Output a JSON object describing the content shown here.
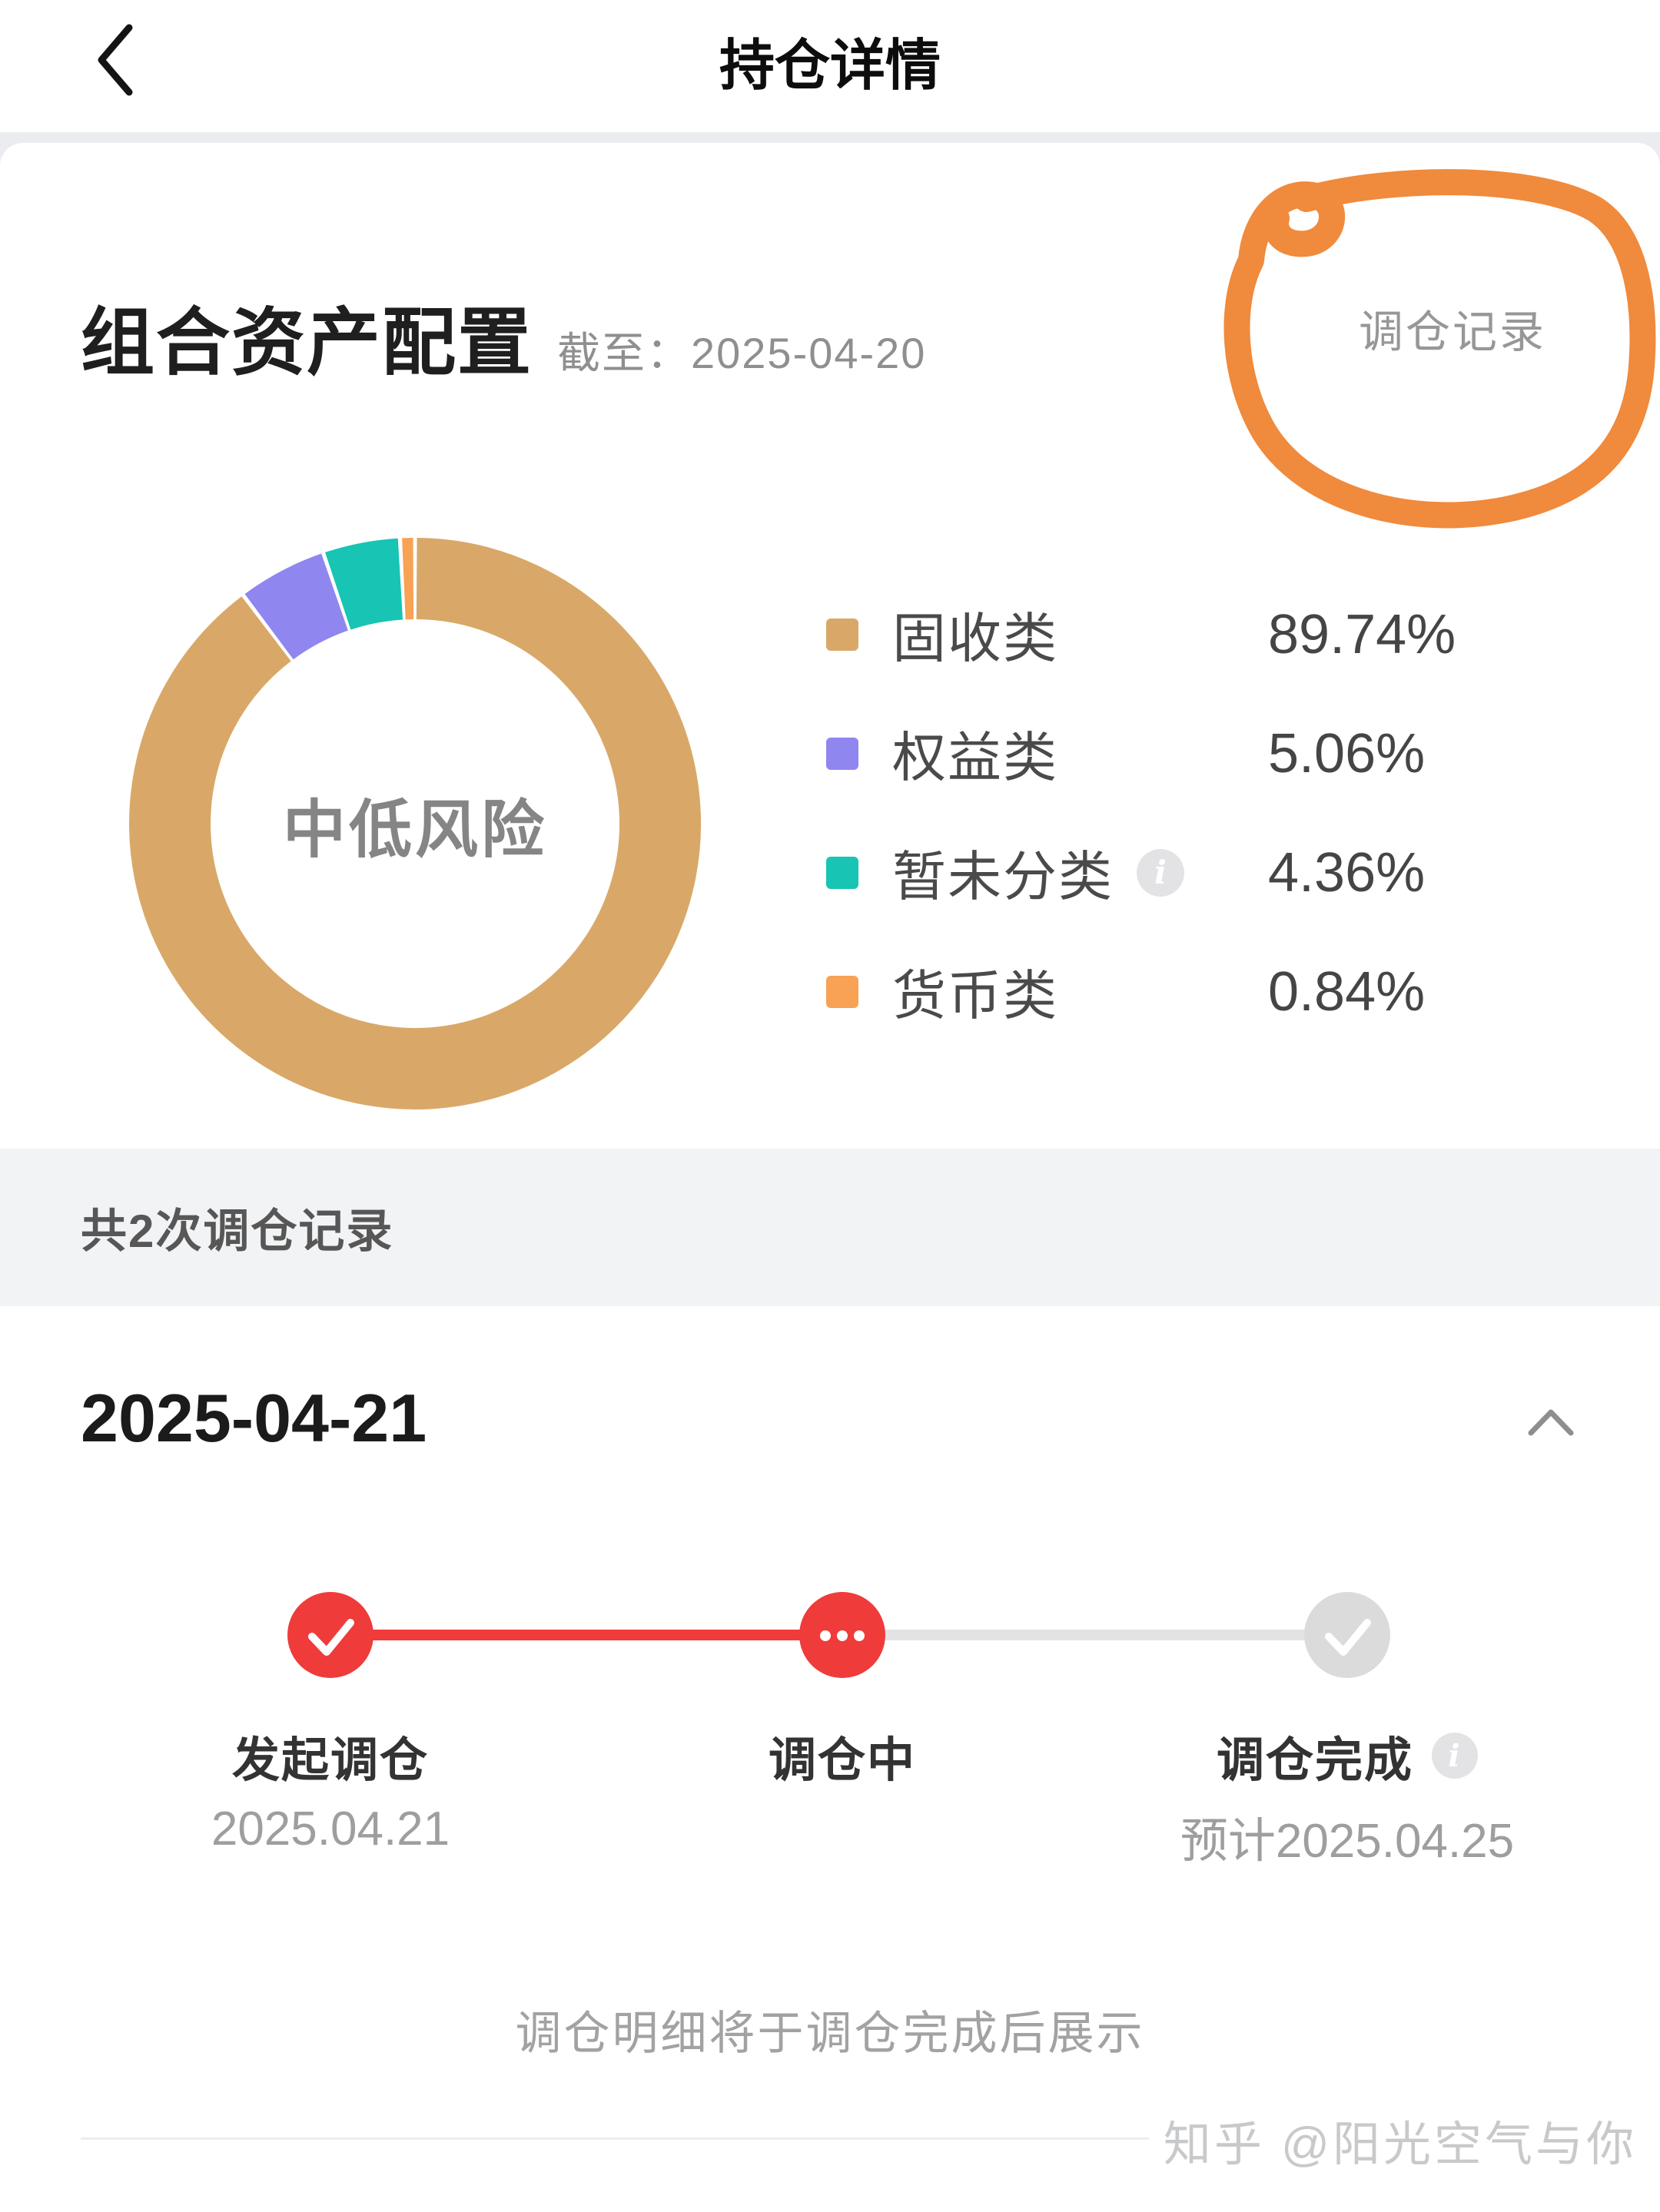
{
  "nav": {
    "title": "持仓详情"
  },
  "allocation": {
    "title": "组合资产配置",
    "as_of_label": "截至：",
    "as_of_date": "2025-04-20",
    "records_link": "调仓记录",
    "risk_label": "中低风险",
    "legend": [
      {
        "label": "固收类",
        "value": "89.74%",
        "color": "#D9A868"
      },
      {
        "label": "权益类",
        "value": "5.06%",
        "color": "#8F86F0"
      },
      {
        "label": "暂未分类",
        "value": "4.36%",
        "color": "#18C4B3"
      },
      {
        "label": "货币类",
        "value": "0.84%",
        "color": "#F7A254"
      }
    ]
  },
  "records": {
    "summary": "共2次调仓记录",
    "date_header": "2025-04-21",
    "note": "调仓明细将于调仓完成后展示"
  },
  "stepper": {
    "steps": [
      {
        "label": "发起调仓",
        "date": "2025.04.21",
        "state": "done"
      },
      {
        "label": "调仓中",
        "date": "",
        "state": "active"
      },
      {
        "label": "调仓完成",
        "date": "预计2025.04.25",
        "state": "pending"
      }
    ]
  },
  "watermark": "知乎 @阳光空气与你",
  "colors": {
    "accent_red": "#F03B3B",
    "pending_gray": "#DBDBDB",
    "track_gray": "#E3E3E3",
    "marker_orange": "#F08A3C"
  },
  "chart_data": {
    "type": "pie",
    "title": "组合资产配置",
    "as_of": "2025-04-20",
    "center_label": "中低风险",
    "categories": [
      "固收类",
      "权益类",
      "暂未分类",
      "货币类"
    ],
    "values": [
      89.74,
      5.06,
      4.36,
      0.84
    ],
    "unit": "%",
    "colors": [
      "#D9A868",
      "#8F86F0",
      "#18C4B3",
      "#F7A254"
    ],
    "legend_position": "right",
    "start_angle": "top",
    "direction": "clockwise",
    "donut": true
  }
}
